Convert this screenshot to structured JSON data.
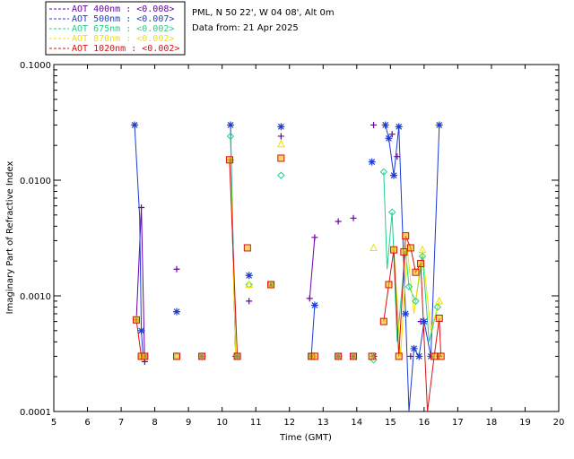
{
  "info": {
    "location": "PML, N 50 22', W 04 08', Alt 0m",
    "date": "Data from: 21 Apr 2025"
  },
  "chart_data": {
    "type": "scatter",
    "title": "",
    "xlabel": "Time (GMT)",
    "ylabel": "Imaginary Part of Refractive Index",
    "xlim": [
      5,
      20
    ],
    "ylim": [
      0.0001,
      0.1
    ],
    "yscale": "log",
    "xticks": [
      "5",
      "6",
      "7",
      "8",
      "9",
      "10",
      "11",
      "12",
      "13",
      "14",
      "15",
      "16",
      "17",
      "18",
      "19",
      "20"
    ],
    "yticks": [
      "0.0001",
      "0.0010",
      "0.0100",
      "0.1000"
    ],
    "legend_position": "top-left-outside",
    "series": [
      {
        "name": "AOT 400nm : <0.008>",
        "color": "#6a00a8",
        "marker": "plus",
        "lines": [
          [
            [
              7.45,
              0.00062
            ],
            [
              7.6,
              0.0058
            ],
            [
              7.7,
              0.00027
            ]
          ],
          [
            [
              10.25,
              0.015
            ],
            [
              10.4,
              0.0003
            ]
          ],
          [
            [
              12.6,
              0.00095
            ],
            [
              12.75,
              0.0032
            ]
          ]
        ],
        "points": [
          [
            7.45,
            0.00062
          ],
          [
            7.6,
            0.0058
          ],
          [
            7.7,
            0.00027
          ],
          [
            8.65,
            0.0017
          ],
          [
            10.25,
            0.015
          ],
          [
            10.4,
            0.0003
          ],
          [
            10.8,
            0.0009
          ],
          [
            11.45,
            0.00125
          ],
          [
            11.75,
            0.024
          ],
          [
            12.6,
            0.00095
          ],
          [
            12.75,
            0.0032
          ],
          [
            13.45,
            0.0044
          ],
          [
            13.9,
            0.0047
          ],
          [
            14.5,
            0.03
          ],
          [
            15.05,
            0.025
          ],
          [
            15.2,
            0.016
          ],
          [
            15.6,
            0.0003
          ],
          [
            15.9,
            0.0006
          ],
          [
            16.45,
            0.0003
          ]
        ]
      },
      {
        "name": "AOT 500nm : <0.007>",
        "color": "#1a3cd8",
        "marker": "star",
        "lines": [
          [
            [
              7.4,
              0.03
            ],
            [
              7.55,
              0.0048
            ],
            [
              7.6,
              0.0005
            ],
            [
              7.65,
              0.0003
            ]
          ],
          [
            [
              10.25,
              0.03
            ],
            [
              10.4,
              0.0003
            ]
          ],
          [
            [
              12.65,
              0.0003
            ],
            [
              12.75,
              0.00083
            ]
          ],
          [
            [
              14.85,
              0.03
            ],
            [
              14.95,
              0.023
            ],
            [
              15.1,
              0.011
            ],
            [
              15.25,
              0.029
            ],
            [
              15.45,
              0.0007
            ],
            [
              15.55,
              0.0001
            ],
            [
              15.7,
              0.00035
            ],
            [
              15.85,
              0.0003
            ],
            [
              16.0,
              0.0006
            ],
            [
              16.2,
              0.0003
            ],
            [
              16.45,
              0.03
            ]
          ]
        ],
        "points": [
          [
            7.4,
            0.03
          ],
          [
            7.6,
            0.0005
          ],
          [
            7.7,
            0.0003
          ],
          [
            8.65,
            0.00073
          ],
          [
            9.4,
            0.0003
          ],
          [
            10.25,
            0.03
          ],
          [
            10.45,
            0.0003
          ],
          [
            10.8,
            0.0015
          ],
          [
            11.45,
            0.00125
          ],
          [
            11.75,
            0.029
          ],
          [
            12.65,
            0.0003
          ],
          [
            12.75,
            0.00083
          ],
          [
            13.45,
            0.0003
          ],
          [
            13.9,
            0.0003
          ],
          [
            14.45,
            0.0144
          ],
          [
            14.5,
            0.0003
          ],
          [
            14.85,
            0.03
          ],
          [
            14.95,
            0.023
          ],
          [
            15.1,
            0.011
          ],
          [
            15.25,
            0.029
          ],
          [
            15.45,
            0.0007
          ],
          [
            15.7,
            0.00035
          ],
          [
            15.85,
            0.0003
          ],
          [
            16.0,
            0.0006
          ],
          [
            16.2,
            0.0003
          ],
          [
            16.45,
            0.03
          ]
        ]
      },
      {
        "name": "AOT 675nm : <0.002>",
        "color": "#22d08a",
        "marker": "diamond",
        "lines": [
          [
            [
              10.25,
              0.024
            ],
            [
              10.4,
              0.0003
            ]
          ],
          [
            [
              14.8,
              0.0118
            ],
            [
              14.9,
              0.0017
            ],
            [
              15.05,
              0.0053
            ],
            [
              15.2,
              0.0004
            ],
            [
              15.45,
              0.0025
            ],
            [
              15.55,
              0.0012
            ],
            [
              15.75,
              0.0009
            ],
            [
              15.95,
              0.0022
            ],
            [
              16.15,
              0.0004
            ],
            [
              16.4,
              0.0008
            ]
          ]
        ],
        "points": [
          [
            7.45,
            0.00062
          ],
          [
            7.6,
            0.0003
          ],
          [
            8.65,
            0.0003
          ],
          [
            10.25,
            0.024
          ],
          [
            10.45,
            0.0003
          ],
          [
            10.8,
            0.00125
          ],
          [
            11.45,
            0.00125
          ],
          [
            11.75,
            0.011
          ],
          [
            12.7,
            0.0003
          ],
          [
            14.5,
            0.00028
          ],
          [
            14.8,
            0.0118
          ],
          [
            15.05,
            0.0053
          ],
          [
            15.55,
            0.0012
          ],
          [
            15.75,
            0.0009
          ],
          [
            15.95,
            0.0022
          ],
          [
            16.4,
            0.0008
          ]
        ]
      },
      {
        "name": "AOT 870nm : <0.002>",
        "color": "#f0e000",
        "marker": "triangle",
        "lines": [
          [
            [
              10.25,
              0.015
            ],
            [
              10.4,
              0.0003
            ]
          ],
          [
            [
              15.1,
              0.0025
            ],
            [
              15.3,
              0.0003
            ],
            [
              15.5,
              0.0026
            ],
            [
              15.7,
              0.0007
            ],
            [
              15.95,
              0.0025
            ],
            [
              16.2,
              0.0005
            ],
            [
              16.45,
              0.0009
            ]
          ]
        ],
        "points": [
          [
            7.45,
            0.00062
          ],
          [
            7.6,
            0.0003
          ],
          [
            10.25,
            0.015
          ],
          [
            10.8,
            0.00125
          ],
          [
            11.45,
            0.00125
          ],
          [
            11.75,
            0.0205
          ],
          [
            14.5,
            0.0026
          ],
          [
            15.1,
            0.0025
          ],
          [
            15.5,
            0.0026
          ],
          [
            15.95,
            0.0025
          ],
          [
            16.45,
            0.0009
          ]
        ]
      },
      {
        "name": "AOT 1020nm : <0.002>",
        "color": "#d81010",
        "marker": "square",
        "lines": [
          [
            [
              7.45,
              0.00062
            ],
            [
              7.6,
              0.0003
            ],
            [
              7.7,
              0.0003
            ]
          ],
          [
            [
              10.22,
              0.015
            ],
            [
              10.45,
              0.0003
            ]
          ],
          [
            [
              14.8,
              0.0006
            ],
            [
              14.95,
              0.00125
            ],
            [
              15.1,
              0.0025
            ],
            [
              15.25,
              0.0003
            ],
            [
              15.45,
              0.0033
            ],
            [
              15.6,
              0.0026
            ],
            [
              15.75,
              0.0016
            ],
            [
              15.9,
              0.0019
            ],
            [
              16.1,
              0.0001
            ],
            [
              16.3,
              0.0003
            ],
            [
              16.45,
              0.00064
            ],
            [
              16.5,
              0.0003
            ]
          ]
        ],
        "points": [
          [
            7.45,
            0.00062
          ],
          [
            7.6,
            0.0003
          ],
          [
            7.7,
            0.0003
          ],
          [
            8.65,
            0.0003
          ],
          [
            9.4,
            0.0003
          ],
          [
            10.22,
            0.015
          ],
          [
            10.45,
            0.0003
          ],
          [
            10.75,
            0.0026
          ],
          [
            11.45,
            0.00125
          ],
          [
            11.75,
            0.0155
          ],
          [
            12.65,
            0.0003
          ],
          [
            12.75,
            0.0003
          ],
          [
            13.45,
            0.0003
          ],
          [
            13.9,
            0.0003
          ],
          [
            14.45,
            0.0003
          ],
          [
            14.8,
            0.0006
          ],
          [
            14.95,
            0.00125
          ],
          [
            15.1,
            0.0025
          ],
          [
            15.25,
            0.0003
          ],
          [
            15.4,
            0.0024
          ],
          [
            15.45,
            0.0033
          ],
          [
            15.6,
            0.0026
          ],
          [
            15.75,
            0.0016
          ],
          [
            15.9,
            0.0019
          ],
          [
            16.3,
            0.0003
          ],
          [
            16.45,
            0.00064
          ],
          [
            16.5,
            0.0003
          ]
        ]
      }
    ]
  }
}
